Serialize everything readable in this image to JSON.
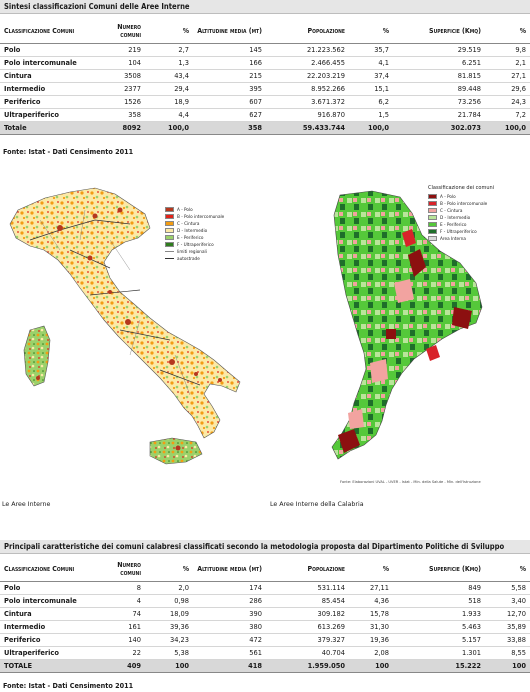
{
  "table1": {
    "title": "Sintesi classificazioni Comuni delle Aree Interne",
    "headers": {
      "classificazione": "Classificazione Comuni",
      "numero": "Numero comuni",
      "pct1": "%",
      "altitudine": "Altitudine media (mt)",
      "popolazione": "Popolazione",
      "pct2": "%",
      "superficie": "Superficie (Kmq)",
      "pct3": "%"
    },
    "rows": [
      {
        "c": "Polo",
        "n": "219",
        "p1": "2,7",
        "alt": "145",
        "pop": "21.223.562",
        "p2": "35,7",
        "sup": "29.519",
        "p3": "9,8"
      },
      {
        "c": "Polo intercomunale",
        "n": "104",
        "p1": "1,3",
        "alt": "166",
        "pop": "2.466.455",
        "p2": "4,1",
        "sup": "6.251",
        "p3": "2,1"
      },
      {
        "c": "Cintura",
        "n": "3508",
        "p1": "43,4",
        "alt": "215",
        "pop": "22.203.219",
        "p2": "37,4",
        "sup": "81.815",
        "p3": "27,1"
      },
      {
        "c": "Intermedio",
        "n": "2377",
        "p1": "29,4",
        "alt": "395",
        "pop": "8.952.266",
        "p2": "15,1",
        "sup": "89.448",
        "p3": "29,6"
      },
      {
        "c": "Periferico",
        "n": "1526",
        "p1": "18,9",
        "alt": "607",
        "pop": "3.671.372",
        "p2": "6,2",
        "sup": "73.256",
        "p3": "24,3"
      },
      {
        "c": "Ultraperiferico",
        "n": "358",
        "p1": "4,4",
        "alt": "627",
        "pop": "916.870",
        "p2": "1,5",
        "sup": "21.784",
        "p3": "7,2"
      }
    ],
    "total": {
      "c": "Totale",
      "n": "8092",
      "p1": "100,0",
      "alt": "358",
      "pop": "59.433.744",
      "p2": "100,0",
      "sup": "302.073",
      "p3": "100,0"
    },
    "source": "Fonte: Istat - Dati Censimento 2011"
  },
  "map_italy": {
    "caption": "Le Aree Interne",
    "legend": [
      {
        "label": "A - Polo",
        "color": "#b5371e"
      },
      {
        "label": "B - Polo intercomunale",
        "color": "#e2231a"
      },
      {
        "label": "C - Cintura",
        "color": "#f39c12"
      },
      {
        "label": "D - Intermedio",
        "color": "#fce9a6"
      },
      {
        "label": "E - Periferico",
        "color": "#9bd16a"
      },
      {
        "label": "F - Ultraperiferico",
        "color": "#2f7d1e"
      }
    ],
    "lines": [
      "limiti regionali",
      "autostrade"
    ]
  },
  "map_calabria": {
    "caption": "Le Aree Interne della Calabria",
    "legend_title": "Classificazione dei comuni",
    "legend": [
      {
        "label": "A - Polo",
        "color": "#8c1010"
      },
      {
        "label": "B - Polo intercomunale",
        "color": "#d8232a"
      },
      {
        "label": "C - Cintura",
        "color": "#f2a3a0"
      },
      {
        "label": "D - Intermedio",
        "color": "#b9e59a"
      },
      {
        "label": "E - Periferico",
        "color": "#55c83a"
      },
      {
        "label": "F - Ultraperiferico",
        "color": "#1e6e2a"
      },
      {
        "label": "Area Interna",
        "color": "#d9d9d9"
      }
    ],
    "source_note": "Fonte: Elaborazioni UVAL - UVER - Istat - Min. della Salute - Min. dell'Istruzione"
  },
  "table2": {
    "title": "Principali caratteristiche dei comuni calabresi classificati secondo la metodologia proposta dal Dipartimento Politiche di Sviluppo",
    "headers": {
      "classificazione": "Classificazione Comuni",
      "numero": "Numero comuni",
      "pct1": "%",
      "altitudine": "Altitudine media (mt)",
      "popolazione": "Popolazione",
      "pct2": "%",
      "superficie": "Superficie (Kmq)",
      "pct3": "%"
    },
    "rows": [
      {
        "c": "Polo",
        "n": "8",
        "p1": "2,0",
        "alt": "174",
        "pop": "531.114",
        "p2": "27,11",
        "sup": "849",
        "p3": "5,58"
      },
      {
        "c": "Polo intercomunale",
        "n": "4",
        "p1": "0,98",
        "alt": "286",
        "pop": "85.454",
        "p2": "4,36",
        "sup": "518",
        "p3": "3,40"
      },
      {
        "c": "Cintura",
        "n": "74",
        "p1": "18,09",
        "alt": "390",
        "pop": "309.182",
        "p2": "15,78",
        "sup": "1.933",
        "p3": "12,70"
      },
      {
        "c": "Intermedio",
        "n": "161",
        "p1": "39,36",
        "alt": "380",
        "pop": "613.269",
        "p2": "31,30",
        "sup": "5.463",
        "p3": "35,89"
      },
      {
        "c": "Periferico",
        "n": "140",
        "p1": "34,23",
        "alt": "472",
        "pop": "379.327",
        "p2": "19,36",
        "sup": "5.157",
        "p3": "33,88"
      },
      {
        "c": "Ultraperiferico",
        "n": "22",
        "p1": "5,38",
        "alt": "561",
        "pop": "40.704",
        "p2": "2,08",
        "sup": "1.301",
        "p3": "8,55"
      }
    ],
    "total": {
      "c": "TOTALE",
      "n": "409",
      "p1": "100",
      "alt": "418",
      "pop": "1.959.050",
      "p2": "100",
      "sup": "15.222",
      "p3": "100"
    },
    "source": "Fonte: Istat - Dati Censimento 2011"
  }
}
